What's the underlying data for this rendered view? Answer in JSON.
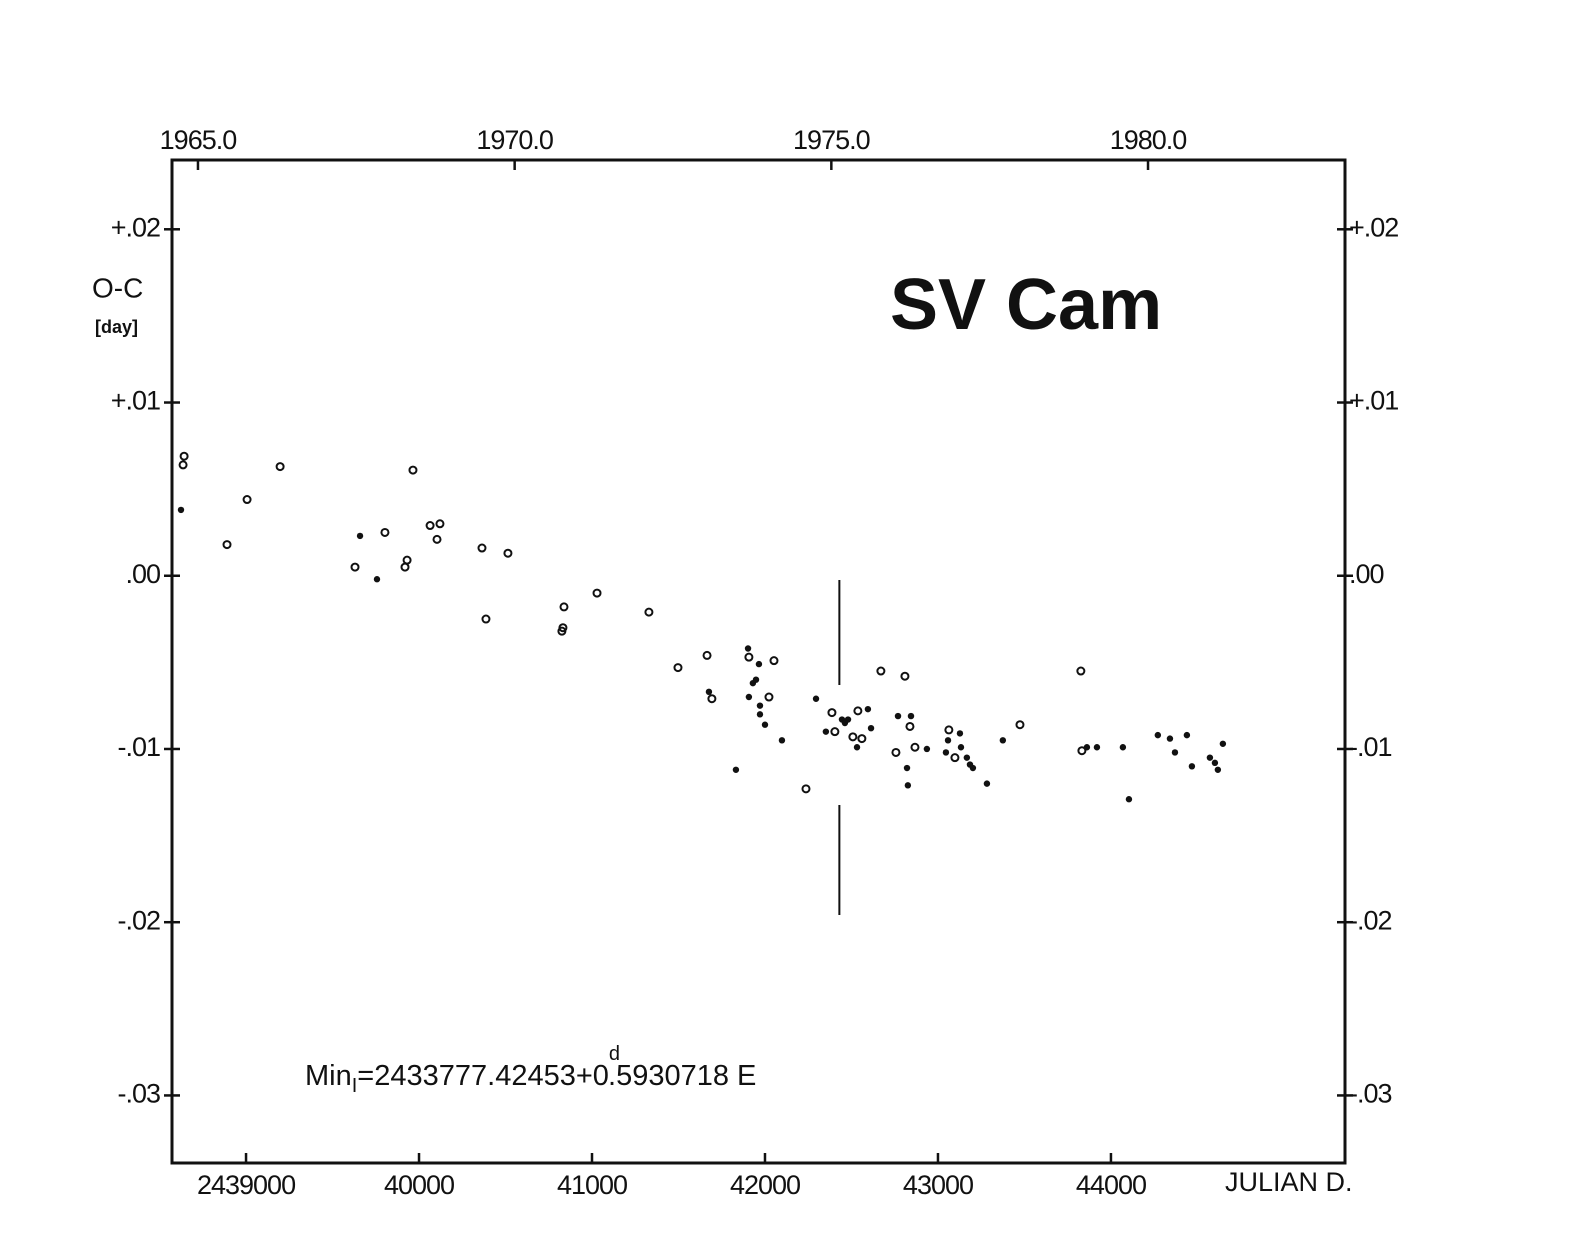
{
  "chart_data": {
    "type": "scatter",
    "title": "SV Cam",
    "y_label": "O-C",
    "y_unit": "[day]",
    "x_label": "JULIAN D.",
    "annotation": {
      "main": "Min",
      "sub": "I",
      "mid": "=2433777.42453+0",
      "sup": "d",
      "tail": ".5930718 E"
    },
    "xlim": [
      2438572,
      2445353
    ],
    "xticks": [
      2439000,
      {
        "value": 2440000,
        "label": "40000"
      },
      {
        "value": 2441000,
        "label": "41000"
      },
      {
        "value": 2442000,
        "label": "42000"
      },
      {
        "value": 2443000,
        "label": "43000"
      },
      {
        "value": 2444000,
        "label": "44000"
      }
    ],
    "x2lim": [
      1964.59,
      1983.11
    ],
    "x2ticks": [
      {
        "value": 1965,
        "label": "1965.0"
      },
      {
        "value": 1970,
        "label": "1970.0"
      },
      {
        "value": 1975,
        "label": "1975.0"
      },
      {
        "value": 1980,
        "label": "1980.0"
      }
    ],
    "ylim": [
      -0.0339,
      0.024
    ],
    "yticks": [
      {
        "value": 0.02,
        "label": "+.02"
      },
      {
        "value": 0.01,
        "label": "+.01"
      },
      {
        "value": 0,
        "label": ".00"
      },
      {
        "value": -0.01,
        "label": "-.01"
      },
      {
        "value": -0.02,
        "label": "-.02"
      },
      {
        "value": -0.03,
        "label": "-.03"
      }
    ],
    "grid": false,
    "marker_x": 2442430,
    "series": [
      {
        "marker": "open",
        "color": "#111111",
        "x": [
          2438636,
          2438642,
          2438890,
          2439006,
          2439197,
          2439630,
          2439803,
          2439919,
          2439931,
          2439965,
          2440064,
          2440121,
          2440104,
          2440364,
          2440387,
          2440514,
          2440826,
          2440838,
          2440832,
          2441029,
          2441329,
          2441497,
          2441665,
          2441693,
          2441907,
          2442023,
          2442052,
          2442237,
          2442387,
          2442404,
          2442508,
          2442537,
          2442560,
          2442670,
          2442757,
          2442809,
          2442838,
          2442867,
          2443063,
          2443098,
          2443474,
          2443826,
          2443832
        ],
        "values": [
          0.0064,
          0.0069,
          0.0018,
          0.0044,
          0.0063,
          0.0005,
          0.0025,
          0.0005,
          0.0009,
          0.0061,
          0.0029,
          0.003,
          0.0021,
          0.0016,
          -0.0025,
          0.0013,
          -0.0032,
          -0.0018,
          -0.003,
          -0.001,
          -0.0021,
          -0.0053,
          -0.0046,
          -0.0071,
          -0.0047,
          -0.007,
          -0.0049,
          -0.0123,
          -0.0079,
          -0.009,
          -0.0093,
          -0.0078,
          -0.0094,
          -0.0055,
          -0.0102,
          -0.0058,
          -0.0087,
          -0.0099,
          -0.0089,
          -0.0105,
          -0.0086,
          -0.0055,
          -0.0101
        ]
      },
      {
        "marker": "filled",
        "color": "#111111",
        "x": [
          2438624,
          2439659,
          2439757,
          2441676,
          2441832,
          2441902,
          2441907,
          2441930,
          2441948,
          2441965,
          2441971,
          2441971,
          2442000,
          2442098,
          2442295,
          2442352,
          2442445,
          2442462,
          2442480,
          2442532,
          2442595,
          2442613,
          2442769,
          2442821,
          2442826,
          2442844,
          2442936,
          2443046,
          2443058,
          2443127,
          2443133,
          2443167,
          2443185,
          2443202,
          2443283,
          2443375,
          2443861,
          2443919,
          2444069,
          2444104,
          2444271,
          2444341,
          2444370,
          2444439,
          2444468,
          2444572,
          2444601,
          2444618,
          2444647
        ],
        "values": [
          0.0038,
          0.0023,
          -0.0002,
          -0.0067,
          -0.0112,
          -0.0042,
          -0.007,
          -0.0062,
          -0.006,
          -0.0051,
          -0.0075,
          -0.008,
          -0.0086,
          -0.0095,
          -0.0071,
          -0.009,
          -0.0083,
          -0.0085,
          -0.0083,
          -0.0099,
          -0.0077,
          -0.0088,
          -0.0081,
          -0.0111,
          -0.0121,
          -0.0081,
          -0.01,
          -0.0102,
          -0.0095,
          -0.0091,
          -0.0099,
          -0.0105,
          -0.0109,
          -0.0111,
          -0.012,
          -0.0095,
          -0.0099,
          -0.0099,
          -0.0099,
          -0.0129,
          -0.0092,
          -0.0094,
          -0.0102,
          -0.0092,
          -0.011,
          -0.0105,
          -0.0108,
          -0.0112,
          -0.0097
        ]
      }
    ]
  }
}
